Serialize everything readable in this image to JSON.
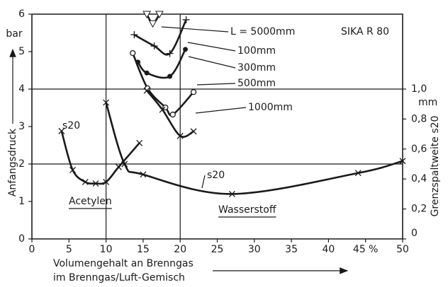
{
  "chart_data": {
    "type": "line",
    "title": "SIKA R 80",
    "ylabel": "Anfangsdruck",
    "yunit": "bar",
    "y2label": "Grenzspaltweite s20",
    "y2unit": "mm",
    "xlabel": [
      "Volumengehalt an Brenngas",
      "im Brenngas/Luft-Gemisch"
    ],
    "xlim": [
      0,
      50
    ],
    "xticks": [
      0,
      5,
      10,
      15,
      20,
      25,
      30,
      35,
      40,
      {
        "value": 45,
        "label": "45 %"
      },
      50
    ],
    "ylim": [
      0,
      6
    ],
    "yticks": [
      0,
      1,
      2,
      3,
      4,
      5,
      6
    ],
    "y2lim": [
      0,
      1.5
    ],
    "y2ticks": [
      0,
      {
        "value": 0.2,
        "label": "0,2"
      },
      {
        "value": 0.4,
        "label": "0,4"
      },
      {
        "value": 0.6,
        "label": "0,6"
      },
      {
        "value": 0.8,
        "label": "0,8"
      },
      {
        "value": 1.0,
        "label": "1,0"
      }
    ],
    "xgrid": [
      10,
      20
    ],
    "ygrid": [
      2,
      4
    ],
    "series": [
      {
        "name": "L = 5000mm",
        "color": "#1a1a1a",
        "marker": "triangle",
        "x": [
          15.5,
          16.3,
          17.2
        ],
        "values": [
          6.0,
          5.75,
          6.0
        ]
      },
      {
        "name": "100mm",
        "color": "#1a1a1a",
        "marker": "plus",
        "x": [
          13.8,
          16.5,
          18.6,
          20.8
        ],
        "values": [
          5.45,
          5.15,
          4.95,
          5.85
        ]
      },
      {
        "name": "300mm",
        "color": "#1a1a1a",
        "marker": "dot",
        "x": [
          14.3,
          15.5,
          18.6,
          20.7
        ],
        "values": [
          4.72,
          4.43,
          4.34,
          5.06
        ]
      },
      {
        "name": "500mm",
        "color": "#1a1a1a",
        "marker": "circle",
        "x": [
          13.6,
          15.6,
          18.0,
          19.0,
          21.8
        ],
        "values": [
          4.96,
          4.02,
          3.51,
          3.32,
          3.92
        ]
      },
      {
        "name": "1000mm",
        "color": "#1a1a1a",
        "marker": "x",
        "x": [
          15.5,
          17.6,
          20.0,
          21.8
        ],
        "values": [
          3.96,
          3.45,
          2.75,
          2.87
        ]
      },
      {
        "name": "s20",
        "color": "#1a1a1a",
        "marker": "x",
        "axis": "y2",
        "x": [
          4,
          5.5,
          7.2,
          8.6,
          10,
          11.7,
          14.5
        ],
        "values": [
          0.72,
          0.46,
          0.38,
          0.37,
          0.38,
          0.48,
          0.64
        ]
      },
      {
        "name": "s20",
        "color": "#1a1a1a",
        "marker": "x",
        "axis": "y2",
        "x": [
          10,
          12.5,
          15,
          27,
          44,
          50
        ],
        "values": [
          0.91,
          0.5,
          0.43,
          0.3,
          0.44,
          0.52
        ]
      }
    ],
    "annotations": [
      "Acetylen",
      "Wasserstoff"
    ]
  }
}
